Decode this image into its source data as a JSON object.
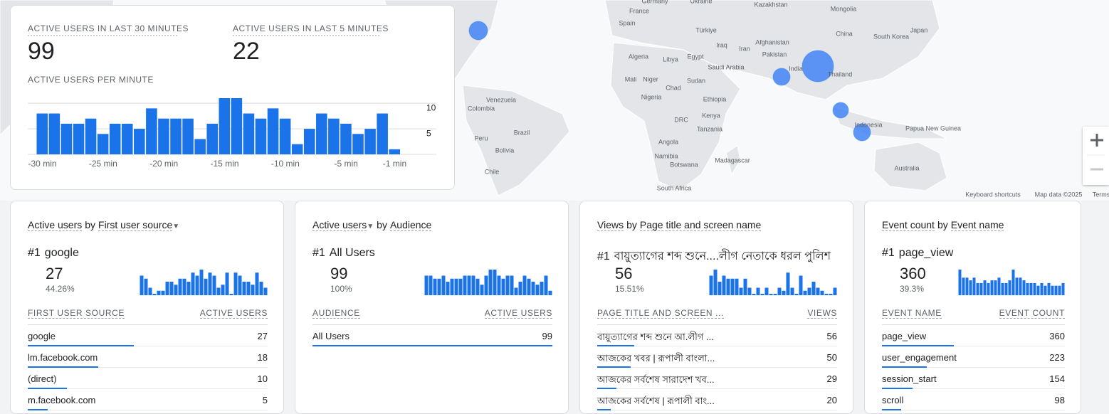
{
  "map": {
    "labels": [
      "Germany",
      "Ukraine",
      "Kazakhstan",
      "Mongolia",
      "France",
      "Spain",
      "Türkiye",
      "China",
      "South Korea",
      "Japan",
      "Iraq",
      "Iran",
      "Afghanistan",
      "Pakistan",
      "Algeria",
      "Libya",
      "Egypt",
      "Saudi Arabia",
      "India",
      "Thailand",
      "Mali",
      "Niger",
      "Chad",
      "Sudan",
      "Nigeria",
      "Ethiopia",
      "DRC",
      "Kenya",
      "Tanzania",
      "Venezuela",
      "Colombia",
      "Brazil",
      "Peru",
      "Bolivia",
      "Chile",
      "Angola",
      "Namibia",
      "Botswana",
      "Madagascar",
      "South Africa",
      "Indonesia",
      "Papua New Guinea",
      "Australia"
    ],
    "footer": [
      "Keyboard shortcuts",
      "Map data ©2025",
      "Terms"
    ]
  },
  "summary": {
    "metrics": [
      {
        "label": "ACTIVE USERS IN LAST 30 MINUTES",
        "value": 99
      },
      {
        "label": "ACTIVE USERS IN LAST 5 MINUTES",
        "value": 22
      }
    ],
    "chart_data": {
      "type": "bar",
      "title": "ACTIVE USERS PER MINUTE",
      "categories": [
        "-30 min",
        null,
        null,
        null,
        null,
        "-25 min",
        null,
        null,
        null,
        null,
        "-20 min",
        null,
        null,
        null,
        null,
        "-15 min",
        null,
        null,
        null,
        null,
        "-10 min",
        null,
        null,
        null,
        null,
        "-5 min",
        null,
        null,
        null,
        "-1 min"
      ],
      "values": [
        8,
        8,
        6,
        6,
        7,
        4,
        6,
        6,
        5,
        9,
        7,
        7,
        7,
        3,
        6,
        11,
        11,
        8,
        7,
        9,
        7,
        2,
        5,
        8,
        7,
        6,
        4,
        5,
        8,
        1
      ],
      "color": "#1a73e8",
      "ylim": [
        0,
        11
      ],
      "yticks": [
        5,
        10
      ],
      "grid": true
    }
  },
  "cards": [
    {
      "metric": "Active users",
      "by": "by",
      "dimension": "First user source",
      "top_rank": "#1",
      "top_name": "google",
      "top_value": 27,
      "top_share": "44.26%",
      "sparkline": [
        6,
        5,
        2,
        0,
        1,
        1,
        4,
        4,
        3,
        5,
        5,
        4,
        7,
        6,
        8,
        5,
        7,
        6,
        2,
        3,
        7,
        0,
        7,
        6,
        4,
        4,
        3,
        7,
        4,
        2
      ],
      "columns": [
        "FIRST USER SOURCE",
        "ACTIVE USERS"
      ],
      "rows": [
        [
          "google",
          27
        ],
        [
          "lm.facebook.com",
          18
        ],
        [
          "(direct)",
          10
        ],
        [
          "m.facebook.com",
          5
        ]
      ]
    },
    {
      "metric": "Active users",
      "by": "by",
      "dimension": "Audience",
      "top_rank": "#1",
      "top_name": "All Users",
      "top_value": 99,
      "top_share": "100%",
      "sparkline": [
        6,
        6,
        5,
        5,
        6,
        4,
        5,
        5,
        5,
        6,
        6,
        6,
        5,
        3,
        6,
        8,
        8,
        6,
        5,
        6,
        6,
        2,
        4,
        6,
        5,
        4,
        3,
        4,
        6,
        1
      ],
      "columns": [
        "AUDIENCE",
        "ACTIVE USERS"
      ],
      "rows": [
        [
          "All Users",
          99
        ]
      ]
    },
    {
      "metric": "Views",
      "by": "by",
      "dimension": "Page title and screen name",
      "top_rank": "#1",
      "top_name": "বায়ুত্যাগের শব্দ শুনে....লীগ নেতাকে ধরল পুলিশ",
      "top_value": 56,
      "top_share": "15.51%",
      "sparkline": [
        6,
        8,
        4,
        6,
        5,
        5,
        5,
        2,
        5,
        2,
        0,
        2,
        0,
        2,
        0,
        0,
        2,
        1,
        7,
        2,
        0,
        6,
        1,
        2,
        4,
        2,
        1,
        0,
        0,
        2
      ],
      "columns": [
        "PAGE TITLE AND SCREEN ...",
        "VIEWS"
      ],
      "rows": [
        [
          "বায়ুত্যাগের শব্দ শুনে আ.লীগ ...",
          56
        ],
        [
          "আজকের খবর | রূপালী বাংলা...",
          50
        ],
        [
          "আজকের সর্বশেষ সারাদেশ খব...",
          29
        ],
        [
          "আজকের সর্বশেষ | রূপালী বাং...",
          20
        ]
      ]
    },
    {
      "metric": "Event count",
      "by": "by",
      "dimension": "Event name",
      "top_rank": "#1",
      "top_name": "page_view",
      "top_value": 360,
      "top_share": "39.3%",
      "sparkline": [
        9,
        6,
        6,
        5,
        6,
        4,
        4,
        5,
        4,
        5,
        5,
        6,
        4,
        4,
        5,
        9,
        6,
        6,
        5,
        4,
        4,
        4,
        3,
        4,
        3,
        4,
        3,
        3,
        3,
        4
      ],
      "columns": [
        "EVENT NAME",
        "EVENT COUNT"
      ],
      "rows": [
        [
          "page_view",
          360
        ],
        [
          "user_engagement",
          223
        ],
        [
          "session_start",
          154
        ],
        [
          "scroll",
          98
        ]
      ]
    }
  ]
}
